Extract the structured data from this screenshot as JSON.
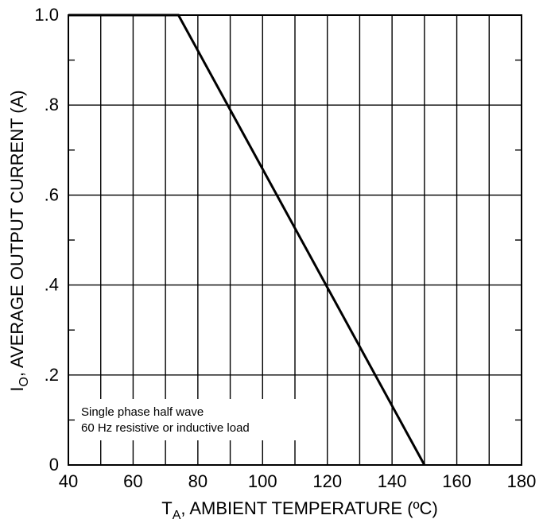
{
  "chart_data": {
    "type": "line",
    "x_ticks": [
      "40",
      "60",
      "80",
      "100",
      "120",
      "140",
      "160",
      "180"
    ],
    "y_ticks": [
      "0",
      ".2",
      ".4",
      ".6",
      ".8",
      "1.0"
    ],
    "xlim": [
      40,
      180
    ],
    "ylim": [
      0,
      1.0
    ],
    "x_minor_step": 10,
    "y_minor_step": 0.1,
    "grid": true,
    "series": [
      {
        "x": [
          40,
          74,
          150
        ],
        "y": [
          1.0,
          1.0,
          0
        ]
      }
    ],
    "xlabel": {
      "prefix": "T",
      "sub": "A",
      "text": ", AMBIENT TEMPERATURE (ºC)"
    },
    "ylabel": {
      "prefix": "I",
      "sub": "O",
      "text": ", AVERAGE OUTPUT CURRENT (A)"
    },
    "annotation": [
      "Single phase half wave",
      "60 Hz resistive or inductive load"
    ],
    "colors": {
      "line": "#000000",
      "grid": "#000000",
      "background": "#ffffff"
    }
  }
}
